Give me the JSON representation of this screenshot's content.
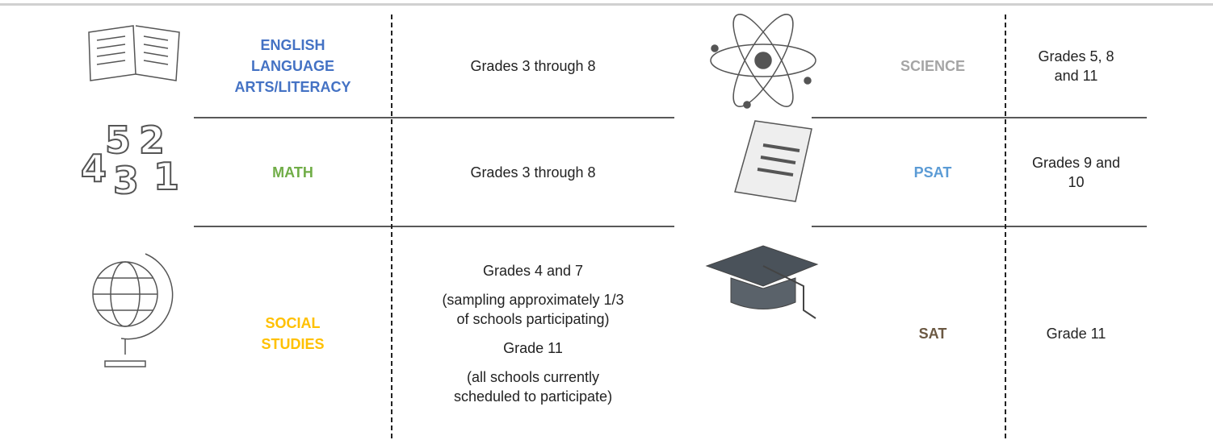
{
  "tables": [
    {
      "rows": [
        {
          "subject": [
            "ENGLISH",
            "LANGUAGE",
            "ARTS/LITERACY"
          ],
          "color": "#4472c4",
          "grades": [
            [
              "Grades 3 through 8"
            ]
          ]
        },
        {
          "subject": [
            "MATH"
          ],
          "color": "#70ad47",
          "grades": [
            [
              "Grades 3 through 8"
            ]
          ]
        },
        {
          "subject": [
            "SOCIAL",
            "STUDIES"
          ],
          "color": "#ffc000",
          "grades": [
            [
              "Grades 4 and 7"
            ],
            [
              "(sampling approximately 1/3",
              "of schools participating)"
            ],
            [
              "Grade 11"
            ],
            [
              "(all schools currently",
              "scheduled to participate)"
            ]
          ]
        }
      ]
    },
    {
      "rows": [
        {
          "subject": [
            "SCIENCE"
          ],
          "color": "#a5a5a5",
          "grades": [
            [
              "Grades 5, 8",
              "and 11"
            ]
          ]
        },
        {
          "subject": [
            "PSAT"
          ],
          "color": "#5b9bd5",
          "grades": [
            [
              "Grades 9 and",
              "10"
            ]
          ]
        },
        {
          "subject": [
            "SAT"
          ],
          "color": "#6b5842",
          "grades": [
            [
              "Grade 11"
            ]
          ]
        }
      ]
    }
  ]
}
